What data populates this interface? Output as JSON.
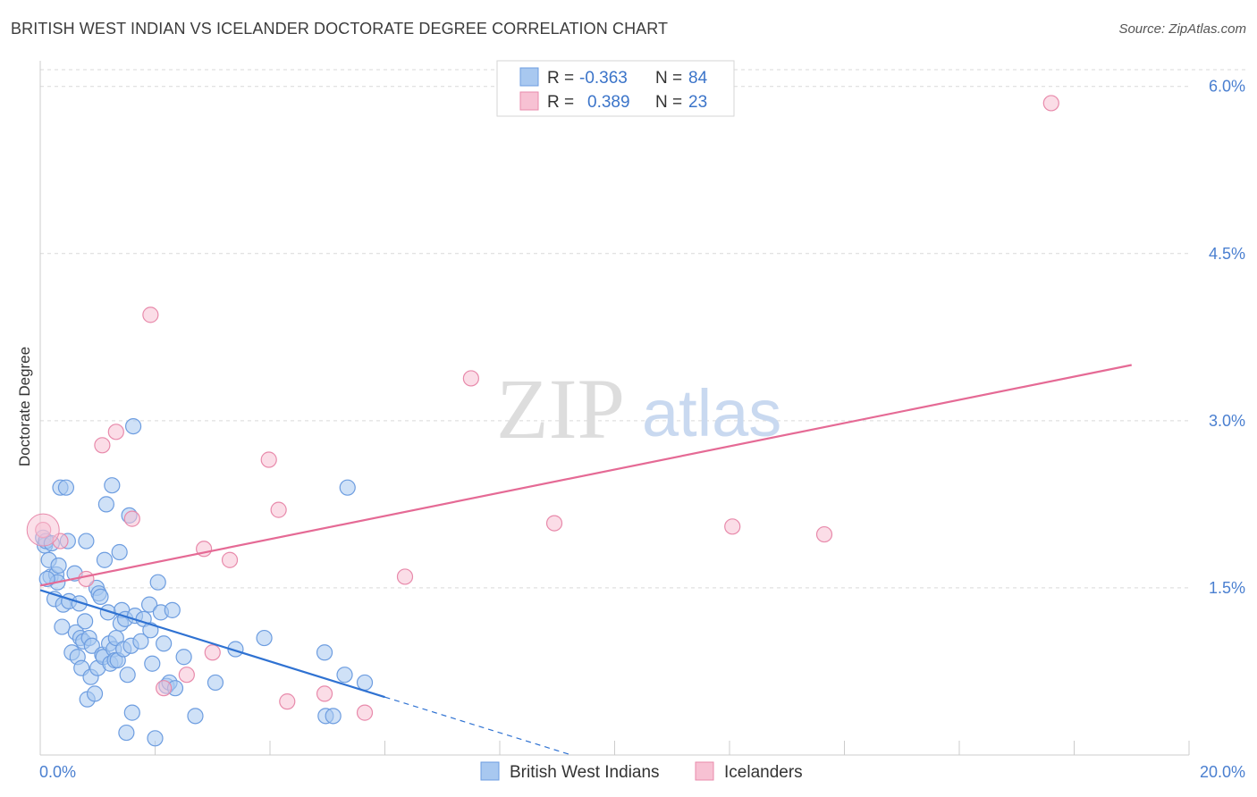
{
  "header": {
    "title": "BRITISH WEST INDIAN VS ICELANDER DOCTORATE DEGREE CORRELATION CHART",
    "source": "Source: ZipAtlas.com"
  },
  "colors": {
    "blue_fill": "#a8c8f0",
    "blue_stroke": "#6d9de0",
    "blue_line": "#2f72d2",
    "pink_fill": "#f7c1d3",
    "pink_stroke": "#e88aab",
    "pink_line": "#e56a95",
    "tick_text": "#4a7fd0",
    "grid": "#d9d9d9"
  },
  "watermark": {
    "zip": "ZIP",
    "atlas": "atlas"
  },
  "stats_legend": {
    "r_label": "R =",
    "n_label": "N =",
    "rows": [
      {
        "series": "British West Indians",
        "r": "-0.363",
        "n": "84"
      },
      {
        "series": "Icelanders",
        "r": "0.389",
        "n": "23"
      }
    ]
  },
  "chart_data": {
    "type": "scatter",
    "title": "BRITISH WEST INDIAN VS ICELANDER DOCTORATE DEGREE CORRELATION CHART",
    "xlabel": "",
    "ylabel": "Doctorate Degree",
    "xlim": [
      0,
      20
    ],
    "ylim": [
      0,
      6.15
    ],
    "x_tick_labels": [
      "0.0%",
      "20.0%"
    ],
    "y_ticks": [
      1.5,
      3.0,
      4.5,
      6.0
    ],
    "y_tick_labels": [
      "1.5%",
      "3.0%",
      "4.5%",
      "6.0%"
    ],
    "grid": true,
    "legend_position": "bottom-center",
    "series": [
      {
        "name": "British West Indians",
        "color": "#a8c8f0",
        "trend": {
          "x0": 0.0,
          "y0": 1.48,
          "x1": 6.0,
          "y1": 0.52,
          "dashed_to_x": 9.2
        },
        "points": [
          [
            0.05,
            1.95
          ],
          [
            0.08,
            1.88
          ],
          [
            0.1,
            1.92
          ],
          [
            0.15,
            1.75
          ],
          [
            0.18,
            1.6
          ],
          [
            0.2,
            1.9
          ],
          [
            0.25,
            1.4
          ],
          [
            0.28,
            1.62
          ],
          [
            0.3,
            1.55
          ],
          [
            0.32,
            1.7
          ],
          [
            0.35,
            2.4
          ],
          [
            0.38,
            1.15
          ],
          [
            0.4,
            1.35
          ],
          [
            0.45,
            2.4
          ],
          [
            0.48,
            1.92
          ],
          [
            0.5,
            1.38
          ],
          [
            0.55,
            0.92
          ],
          [
            0.6,
            1.63
          ],
          [
            0.62,
            1.1
          ],
          [
            0.65,
            0.88
          ],
          [
            0.68,
            1.36
          ],
          [
            0.7,
            1.05
          ],
          [
            0.72,
            0.78
          ],
          [
            0.75,
            1.02
          ],
          [
            0.78,
            1.2
          ],
          [
            0.8,
            1.92
          ],
          [
            0.82,
            0.5
          ],
          [
            0.85,
            1.05
          ],
          [
            0.88,
            0.7
          ],
          [
            0.9,
            0.98
          ],
          [
            0.95,
            0.55
          ],
          [
            0.98,
            1.5
          ],
          [
            1.0,
            0.78
          ],
          [
            1.02,
            1.45
          ],
          [
            1.05,
            1.42
          ],
          [
            1.08,
            0.9
          ],
          [
            1.1,
            0.88
          ],
          [
            1.12,
            1.75
          ],
          [
            1.15,
            2.25
          ],
          [
            1.18,
            1.28
          ],
          [
            1.2,
            1.0
          ],
          [
            1.22,
            0.82
          ],
          [
            1.25,
            2.42
          ],
          [
            1.28,
            0.95
          ],
          [
            1.3,
            0.85
          ],
          [
            1.32,
            1.05
          ],
          [
            1.35,
            0.85
          ],
          [
            1.38,
            1.82
          ],
          [
            1.4,
            1.18
          ],
          [
            1.42,
            1.3
          ],
          [
            1.45,
            0.95
          ],
          [
            1.48,
            1.22
          ],
          [
            1.5,
            0.2
          ],
          [
            1.52,
            0.72
          ],
          [
            1.55,
            2.15
          ],
          [
            1.58,
            0.98
          ],
          [
            1.6,
            0.38
          ],
          [
            1.62,
            2.95
          ],
          [
            1.65,
            1.25
          ],
          [
            1.75,
            1.02
          ],
          [
            1.8,
            1.22
          ],
          [
            1.9,
            1.35
          ],
          [
            1.92,
            1.12
          ],
          [
            1.95,
            0.82
          ],
          [
            2.0,
            0.15
          ],
          [
            2.05,
            1.55
          ],
          [
            2.1,
            1.28
          ],
          [
            2.15,
            1.0
          ],
          [
            2.2,
            0.62
          ],
          [
            2.25,
            0.65
          ],
          [
            2.3,
            1.3
          ],
          [
            2.35,
            0.6
          ],
          [
            2.5,
            0.88
          ],
          [
            2.7,
            0.35
          ],
          [
            3.05,
            0.65
          ],
          [
            3.4,
            0.95
          ],
          [
            3.9,
            1.05
          ],
          [
            4.95,
            0.92
          ],
          [
            4.97,
            0.35
          ],
          [
            5.1,
            0.35
          ],
          [
            5.3,
            0.72
          ],
          [
            5.35,
            2.4
          ],
          [
            5.65,
            0.65
          ],
          [
            0.12,
            1.58
          ]
        ]
      },
      {
        "name": "Icelanders",
        "color": "#f7c1d3",
        "trend": {
          "x0": 0.0,
          "y0": 1.52,
          "x1": 19.0,
          "y1": 3.5
        },
        "points": [
          [
            0.05,
            2.02
          ],
          [
            0.35,
            1.92
          ],
          [
            0.8,
            1.58
          ],
          [
            1.08,
            2.78
          ],
          [
            1.32,
            2.9
          ],
          [
            1.6,
            2.12
          ],
          [
            1.92,
            3.95
          ],
          [
            2.15,
            0.6
          ],
          [
            2.55,
            0.72
          ],
          [
            2.85,
            1.85
          ],
          [
            3.0,
            0.92
          ],
          [
            3.3,
            1.75
          ],
          [
            3.98,
            2.65
          ],
          [
            4.15,
            2.2
          ],
          [
            4.3,
            0.48
          ],
          [
            4.95,
            0.55
          ],
          [
            5.65,
            0.38
          ],
          [
            6.35,
            1.6
          ],
          [
            7.5,
            3.38
          ],
          [
            8.95,
            2.08
          ],
          [
            12.05,
            2.05
          ],
          [
            13.65,
            1.98
          ],
          [
            17.6,
            5.85
          ]
        ]
      }
    ]
  },
  "bottom_legend": {
    "items": [
      "British West Indians",
      "Icelanders"
    ]
  }
}
